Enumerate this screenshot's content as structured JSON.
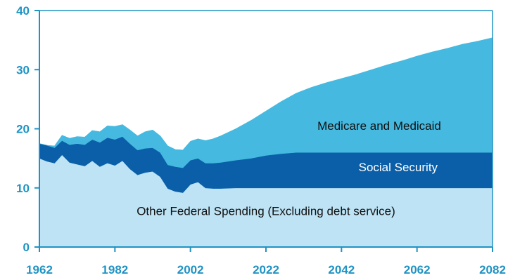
{
  "chart_data": {
    "type": "area",
    "stacked": true,
    "title": "",
    "xlabel": "",
    "ylabel": "",
    "xlim": [
      1962,
      2082
    ],
    "ylim": [
      0,
      40
    ],
    "x_ticks": [
      1962,
      1982,
      2002,
      2022,
      2042,
      2062,
      2082
    ],
    "y_ticks": [
      0,
      10,
      20,
      30,
      40
    ],
    "grid": false,
    "legend": "labels inside areas",
    "x": [
      1962,
      1964,
      1966,
      1968,
      1970,
      1972,
      1974,
      1976,
      1978,
      1980,
      1982,
      1984,
      1986,
      1988,
      1990,
      1992,
      1994,
      1996,
      1998,
      2000,
      2002,
      2004,
      2006,
      2008,
      2010,
      2014,
      2018,
      2022,
      2026,
      2030,
      2034,
      2038,
      2042,
      2046,
      2050,
      2054,
      2058,
      2062,
      2066,
      2070,
      2074,
      2078,
      2082
    ],
    "series": [
      {
        "name": "Other Federal Spending (Excluding debt service)",
        "color": "#bde3f5",
        "values": [
          15.0,
          14.5,
          14.2,
          15.6,
          14.3,
          14.0,
          13.7,
          14.6,
          13.6,
          14.2,
          13.8,
          14.6,
          13.2,
          12.2,
          12.6,
          12.8,
          11.9,
          9.9,
          9.4,
          9.2,
          10.6,
          11.0,
          10.0,
          9.9,
          9.9,
          10.0,
          10.0,
          10.0,
          10.0,
          10.0,
          10.0,
          10.0,
          10.0,
          10.0,
          10.0,
          10.0,
          10.0,
          10.0,
          10.0,
          10.0,
          10.0,
          10.0,
          10.0
        ]
      },
      {
        "name": "Social Security",
        "color": "#0a5fa8",
        "values": [
          2.5,
          2.7,
          2.6,
          2.4,
          3.0,
          3.5,
          3.6,
          3.6,
          4.1,
          4.3,
          4.4,
          4.1,
          4.3,
          4.2,
          4.1,
          4.0,
          4.1,
          4.0,
          4.2,
          4.2,
          4.1,
          4.0,
          4.2,
          4.3,
          4.4,
          4.7,
          5.0,
          5.5,
          5.8,
          6.0,
          6.0,
          6.0,
          6.0,
          6.0,
          6.0,
          6.0,
          6.0,
          6.0,
          6.0,
          6.0,
          6.0,
          6.0,
          6.0
        ]
      },
      {
        "name": "Medicare and Medicaid",
        "color": "#45b9e0",
        "values": [
          0,
          0,
          0.3,
          0.9,
          1.1,
          1.2,
          1.3,
          1.5,
          1.8,
          2.0,
          2.2,
          2.0,
          2.3,
          2.4,
          2.8,
          3.0,
          2.8,
          3.2,
          2.9,
          3.0,
          3.2,
          3.3,
          3.8,
          4.1,
          4.5,
          5.3,
          6.4,
          7.5,
          8.8,
          10.0,
          11.0,
          11.8,
          12.5,
          13.2,
          14.0,
          14.8,
          15.5,
          16.3,
          17.0,
          17.6,
          18.3,
          18.8,
          19.4
        ]
      }
    ],
    "annotations": [
      {
        "text": "Medicare and Medicaid",
        "x": 2052,
        "y": 19.8
      },
      {
        "text": "Social Security",
        "x": 2057,
        "y": 12.8
      },
      {
        "text": "Other Federal Spending (Excluding debt service)",
        "x": 2022,
        "y": 5.4
      }
    ]
  }
}
